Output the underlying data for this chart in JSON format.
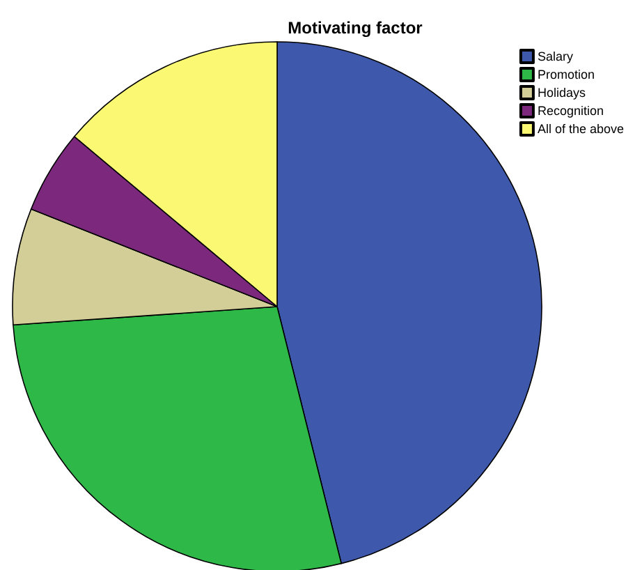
{
  "chart_data": {
    "type": "pie",
    "title": "Motivating factor",
    "categories": [
      "Salary",
      "Promotion",
      "Holidays",
      "Recognition",
      "All of the above"
    ],
    "values": [
      46.1,
      27.8,
      7.1,
      5.1,
      13.9
    ],
    "colors": [
      "#3e58ac",
      "#2eb848",
      "#d3ce97",
      "#7c287d",
      "#fbf873"
    ],
    "legend": "top right"
  }
}
